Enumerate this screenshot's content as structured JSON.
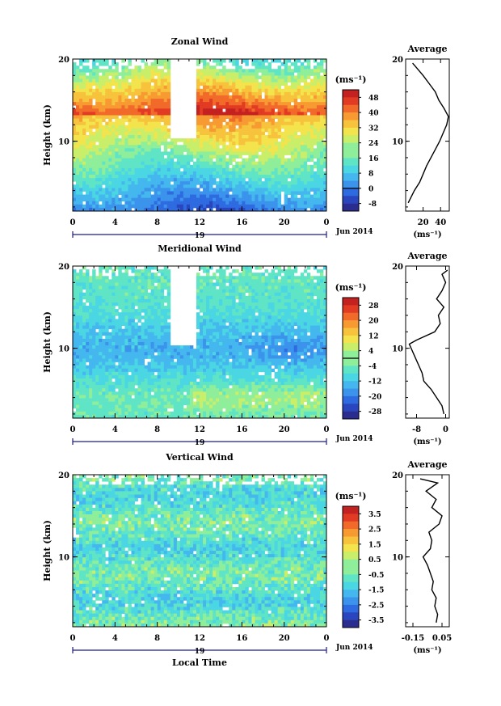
{
  "chart_data": [
    {
      "type": "heatmap",
      "title": "Zonal Wind",
      "ylabel": "Height (km)",
      "xlabel": "",
      "x_ticks": [
        "0",
        "4",
        "8",
        "12",
        "16",
        "20",
        "0"
      ],
      "xlim": [
        0,
        24
      ],
      "y_ticks": [
        "10",
        "20"
      ],
      "ylim": [
        1.5,
        20
      ],
      "date_label": "19",
      "month_label": "Jun 2014",
      "colorbar": {
        "unit": "(ms⁻¹)",
        "ticks": [
          "48",
          "40",
          "32",
          "24",
          "16",
          "8",
          "0",
          "-8"
        ],
        "min": -12,
        "max": 52,
        "zero_line": 0
      },
      "profile": {
        "title": "Average",
        "xlabel": "(ms⁻¹)",
        "x_ticks": [
          "20",
          "40"
        ],
        "xlim": [
          0,
          50
        ],
        "y_ticks": [
          "10",
          "20"
        ],
        "height_km": [
          2.5,
          4,
          5,
          6,
          7,
          8,
          9,
          10,
          11,
          12,
          13,
          14,
          15,
          16,
          17,
          18,
          19,
          19.5
        ],
        "values": [
          3,
          10,
          16,
          20,
          24,
          29,
          34,
          39,
          43,
          47,
          49,
          44,
          38,
          34,
          27,
          20,
          12,
          8
        ]
      }
    },
    {
      "type": "heatmap",
      "title": "Meridional Wind",
      "ylabel": "Height (km)",
      "xlabel": "",
      "x_ticks": [
        "0",
        "4",
        "8",
        "12",
        "16",
        "20",
        "0"
      ],
      "xlim": [
        0,
        24
      ],
      "y_ticks": [
        "10",
        "20"
      ],
      "ylim": [
        1.5,
        20
      ],
      "date_label": "19",
      "month_label": "Jun 2014",
      "colorbar": {
        "unit": "(ms⁻¹)",
        "ticks": [
          "28",
          "20",
          "12",
          "4",
          "-4",
          "-12",
          "-20",
          "-28"
        ],
        "min": -32,
        "max": 32,
        "zero_line": 0
      },
      "profile": {
        "title": "Average",
        "xlabel": "(ms⁻¹)",
        "x_ticks": [
          "-8",
          "0"
        ],
        "xlim": [
          -11,
          1
        ],
        "y_ticks": [
          "10",
          "20"
        ],
        "height_km": [
          2,
          3,
          4,
          5,
          6,
          7,
          8,
          9,
          10,
          10.5,
          11,
          12,
          13,
          14,
          15,
          16,
          17,
          18,
          19,
          19.5
        ],
        "values": [
          -0.5,
          -1,
          -2.5,
          -4,
          -6,
          -6.5,
          -7.5,
          -8.5,
          -9.5,
          -10,
          -8,
          -3,
          -1.5,
          -2,
          -0.5,
          -2.5,
          -1,
          0,
          -1,
          0.5
        ]
      }
    },
    {
      "type": "heatmap",
      "title": "Vertical Wind",
      "ylabel": "Height (km)",
      "xlabel": "Local Time",
      "x_ticks": [
        "0",
        "4",
        "8",
        "12",
        "16",
        "20",
        "0"
      ],
      "xlim": [
        0,
        24
      ],
      "y_ticks": [
        "10",
        "20"
      ],
      "ylim": [
        1.5,
        20
      ],
      "date_label": "19",
      "month_label": "Jun 2014",
      "colorbar": {
        "unit": "(ms⁻¹)",
        "ticks": [
          "3.5",
          "2.5",
          "1.5",
          "0.5",
          "-0.5",
          "-1.5",
          "-2.5",
          "-3.5"
        ],
        "min": -4,
        "max": 4,
        "zero_line": null
      },
      "profile": {
        "title": "Average",
        "xlabel": "(ms⁻¹)",
        "x_ticks": [
          "-0.15",
          "0.05"
        ],
        "xlim": [
          -0.2,
          0.1
        ],
        "y_ticks": [
          "10",
          "20"
        ],
        "height_km": [
          2,
          3,
          4,
          5,
          6,
          7,
          8,
          9,
          10,
          11,
          12,
          13,
          14,
          15,
          16,
          17,
          18,
          19,
          19.5
        ],
        "values": [
          0.01,
          0.02,
          0.0,
          0.01,
          -0.02,
          -0.01,
          -0.03,
          -0.05,
          -0.08,
          -0.03,
          -0.02,
          -0.04,
          0.03,
          0.05,
          -0.02,
          0.01,
          -0.06,
          0.02,
          -0.1
        ]
      }
    }
  ]
}
